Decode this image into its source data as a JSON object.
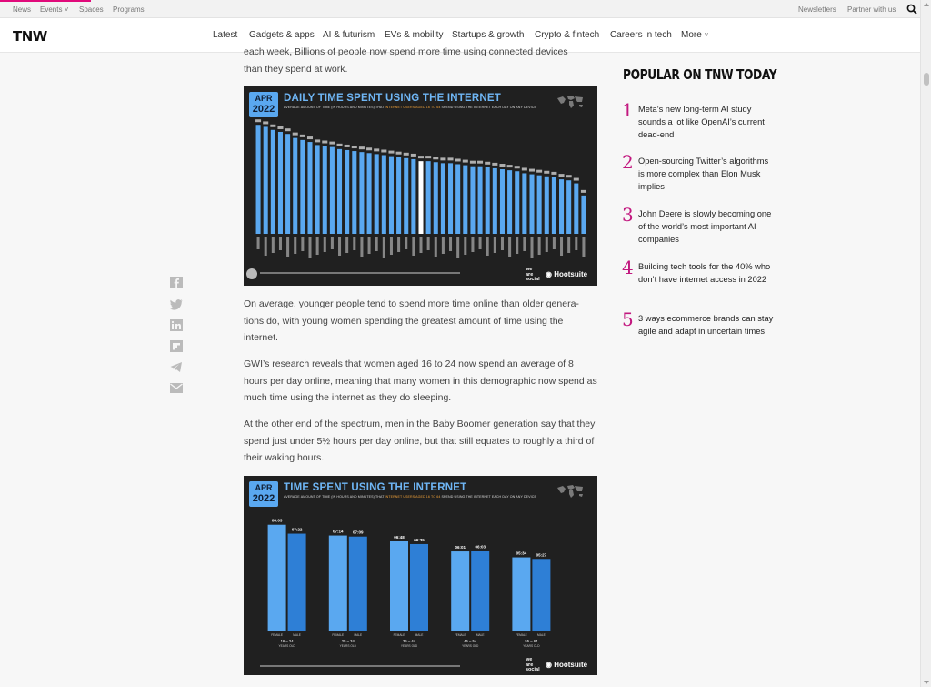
{
  "top_links": [
    "News",
    "Events",
    "Spaces",
    "Programs"
  ],
  "top_right_links": [
    "Newsletters",
    "Partner with us"
  ],
  "logo": "TNW",
  "nav": [
    "Latest",
    "Gadgets & apps",
    "AI & futurism",
    "EVs & mobility",
    "Startups & growth",
    "Crypto & fintech",
    "Careers in tech",
    "More"
  ],
  "article": {
    "intro_line1": "each week, Billions of people now spend more time using connected devices",
    "intro_line2": "than they spend at work.",
    "p1": "On average, younger people tend to spend more time online than older genera-tions do, with young women spending the greatest amount of time using the internet.",
    "p2": "GWI’s research reveals that women aged 16 to 24 now spend an average of 8 hours per day online, meaning that many women in this demographic now spend as much time using the internet as they do sleeping.",
    "p3": "At the other end of the spectrum, men in the Baby Boomer generation say that they spend just under 5½ hours per day online, but that still equates to roughly a third of their waking hours."
  },
  "chart_data": [
    {
      "type": "bar",
      "badge_month": "APR",
      "badge_year": "2022",
      "title": "DAILY TIME SPENT USING THE INTERNET",
      "subtitle_a": "AVERAGE AMOUNT OF TIME (IN HOURS AND MINUTES) THAT ",
      "subtitle_hl": "INTERNET USERS AGED 16 TO 64",
      "subtitle_b": " SPEND USING THE INTERNET EACH DAY ON ANY DEVICE",
      "highlight_index": 22,
      "values": [
        10.8,
        10.6,
        10.3,
        10.1,
        9.9,
        9.5,
        9.3,
        9.1,
        8.8,
        8.7,
        8.6,
        8.4,
        8.3,
        8.2,
        8.1,
        8.0,
        7.9,
        7.8,
        7.7,
        7.6,
        7.5,
        7.4,
        7.2,
        7.2,
        7.1,
        7.0,
        7.0,
        6.9,
        6.8,
        6.7,
        6.7,
        6.6,
        6.5,
        6.4,
        6.3,
        6.2,
        6.0,
        5.9,
        5.8,
        5.7,
        5.6,
        5.4,
        5.3,
        5.0,
        3.8
      ],
      "ylim": [
        0,
        11
      ]
    },
    {
      "type": "bar",
      "badge_month": "APR",
      "badge_year": "2022",
      "title": "TIME SPENT USING THE INTERNET",
      "subtitle_a": "AVERAGE AMOUNT OF TIME (IN HOURS AND MINUTES) THAT ",
      "subtitle_hl": "INTERNET USERS AGED 16 TO 64",
      "subtitle_b": " SPEND USING THE INTERNET EACH DAY ON ANY DEVICE",
      "categories": [
        "16 – 24",
        "25 – 34",
        "35 – 44",
        "45 – 54",
        "55 – 64"
      ],
      "category_sublabel": "YEARS OLD",
      "series": [
        {
          "name": "FEMALE",
          "values": [
            8.05,
            7.23,
            6.8,
            6.02,
            5.57
          ],
          "labels": [
            "08:03",
            "07:14",
            "06:48",
            "06:01",
            "05:34"
          ]
        },
        {
          "name": "MALE",
          "values": [
            7.37,
            7.15,
            6.58,
            6.05,
            5.45
          ],
          "labels": [
            "07:22",
            "07:09",
            "06:35",
            "06:03",
            "05:27"
          ]
        }
      ],
      "ylim": [
        0,
        9
      ]
    }
  ],
  "brands": {
    "hootsuite": "Hootsuite",
    "was_1": "we",
    "was_2": "are",
    "was_3": "social"
  },
  "popular": {
    "title": "POPULAR ON TNW TODAY",
    "items": [
      {
        "num": "1",
        "text": "Meta’s new long-term AI study sounds a lot like OpenAI’s current dead-end"
      },
      {
        "num": "2",
        "text": "Open-sourcing Twitter’s algorithms is more complex than Elon Musk implies"
      },
      {
        "num": "3",
        "text": "John Deere is slowly becoming one of the world’s most important AI companies"
      },
      {
        "num": "4",
        "text": "Building tech tools for the 40% who don’t have internet access in 2022"
      },
      {
        "num": "5",
        "text": "3 ways ecommerce brands can stay agile and adapt in uncertain times"
      }
    ]
  },
  "colors": {
    "accent": "#e10a7b",
    "number": "#c2187f",
    "bar": "#5aa8f0",
    "bar_dark": "#2e7fd6",
    "bar_highlight": "#ffffff"
  }
}
